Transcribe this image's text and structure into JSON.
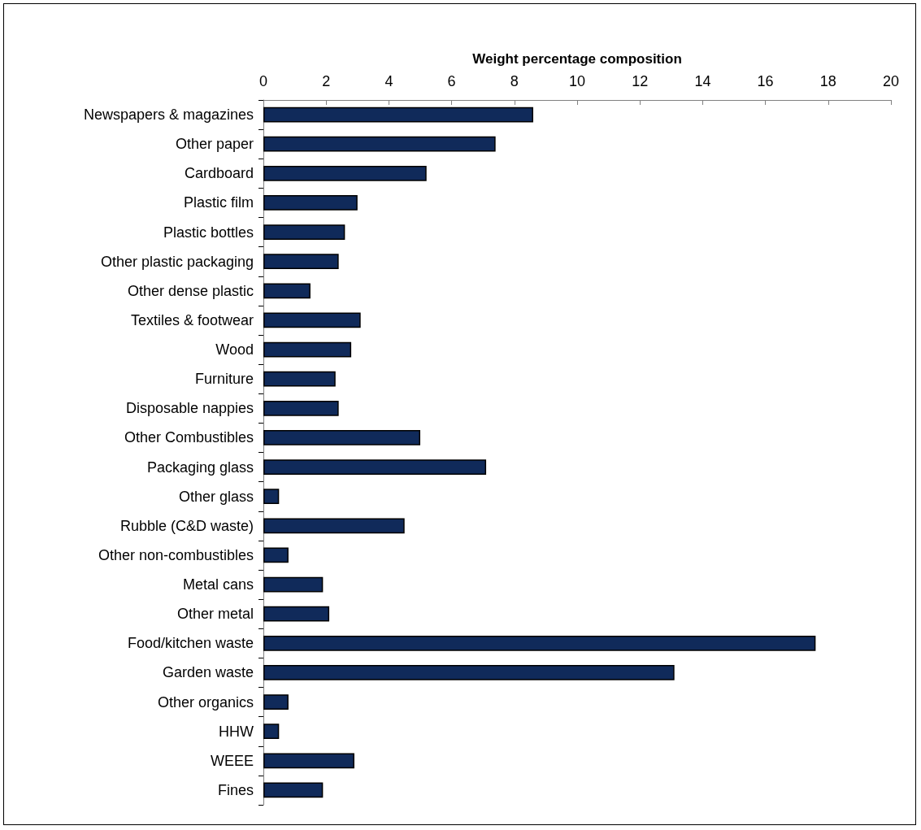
{
  "chart_data": {
    "type": "bar",
    "orientation": "horizontal",
    "xlabel": "Weight percentage composition",
    "categories": [
      "Newspapers & magazines",
      "Other paper",
      "Cardboard",
      "Plastic film",
      "Plastic bottles",
      "Other plastic packaging",
      "Other dense plastic",
      "Textiles & footwear",
      "Wood",
      "Furniture",
      "Disposable nappies",
      "Other Combustibles",
      "Packaging glass",
      "Other glass",
      "Rubble (C&D waste)",
      "Other non-combustibles",
      "Metal cans",
      "Other metal",
      "Food/kitchen waste",
      "Garden waste",
      "Other organics",
      "HHW",
      "WEEE",
      "Fines"
    ],
    "values": [
      8.6,
      7.4,
      5.2,
      3.0,
      2.6,
      2.4,
      1.5,
      3.1,
      2.8,
      2.3,
      2.4,
      5.0,
      7.1,
      0.5,
      4.5,
      0.8,
      1.9,
      2.1,
      17.6,
      13.1,
      0.8,
      0.5,
      2.9,
      1.9
    ],
    "color": "#102a5a",
    "xlim": [
      0,
      20
    ],
    "xticks": [
      0,
      2,
      4,
      6,
      8,
      10,
      12,
      14,
      16,
      18,
      20
    ]
  }
}
